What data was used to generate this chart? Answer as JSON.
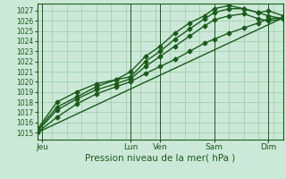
{
  "title": "Pression niveau de la mer( hPa )",
  "ylabel_values": [
    1015,
    1016,
    1017,
    1018,
    1019,
    1020,
    1021,
    1022,
    1023,
    1024,
    1025,
    1026,
    1027
  ],
  "ylim": [
    1014.3,
    1027.7
  ],
  "xlim": [
    0,
    100
  ],
  "bg_color": "#cce8d8",
  "grid_color": "#99ccaa",
  "line_color": "#1a5c1a",
  "day_labels": [
    "Jeu",
    "Lun",
    "Ven",
    "Sam",
    "Dim"
  ],
  "day_positions": [
    2,
    38,
    50,
    72,
    94
  ],
  "lines": [
    {
      "x": [
        0,
        8,
        16,
        24,
        32,
        38,
        44,
        50,
        56,
        62,
        68,
        72,
        78,
        84,
        90,
        94,
        100
      ],
      "y": [
        1015.0,
        1016.5,
        1017.8,
        1018.8,
        1019.5,
        1020.0,
        1020.8,
        1021.5,
        1022.2,
        1023.0,
        1023.8,
        1024.2,
        1024.8,
        1025.3,
        1025.8,
        1026.2,
        1026.3
      ],
      "marker": "D",
      "ms": 2.5,
      "lw": 1.0
    },
    {
      "x": [
        0,
        8,
        16,
        24,
        32,
        38,
        44,
        50,
        56,
        62,
        68,
        72,
        78,
        84,
        90,
        94,
        100
      ],
      "y": [
        1015.1,
        1017.2,
        1018.3,
        1019.2,
        1019.8,
        1020.3,
        1021.5,
        1022.5,
        1023.5,
        1024.5,
        1025.5,
        1026.1,
        1026.5,
        1026.7,
        1026.2,
        1026.0,
        1026.2
      ],
      "marker": "D",
      "ms": 2.5,
      "lw": 1.0
    },
    {
      "x": [
        0,
        8,
        16,
        24,
        32,
        38,
        44,
        50,
        56,
        62,
        68,
        72,
        78,
        84,
        90,
        94,
        100
      ],
      "y": [
        1015.2,
        1017.5,
        1018.5,
        1019.5,
        1020.2,
        1020.5,
        1022.0,
        1023.0,
        1024.2,
        1025.2,
        1026.2,
        1026.8,
        1027.2,
        1027.2,
        1026.8,
        1026.5,
        1026.2
      ],
      "marker": "D",
      "ms": 2.5,
      "lw": 1.0
    },
    {
      "x": [
        0,
        8,
        16,
        24,
        32,
        38,
        44,
        50,
        56,
        62,
        68,
        72,
        78,
        84,
        90,
        94,
        100
      ],
      "y": [
        1015.3,
        1018.0,
        1019.0,
        1019.8,
        1020.2,
        1021.0,
        1022.5,
        1023.5,
        1024.8,
        1025.8,
        1026.5,
        1027.2,
        1027.5,
        1027.2,
        1026.8,
        1027.0,
        1026.5
      ],
      "marker": "D",
      "ms": 2.5,
      "lw": 1.0
    },
    {
      "x": [
        0,
        100
      ],
      "y": [
        1015.0,
        1026.3
      ],
      "marker": null,
      "ms": 0,
      "lw": 1.0,
      "linestyle": "-"
    }
  ]
}
